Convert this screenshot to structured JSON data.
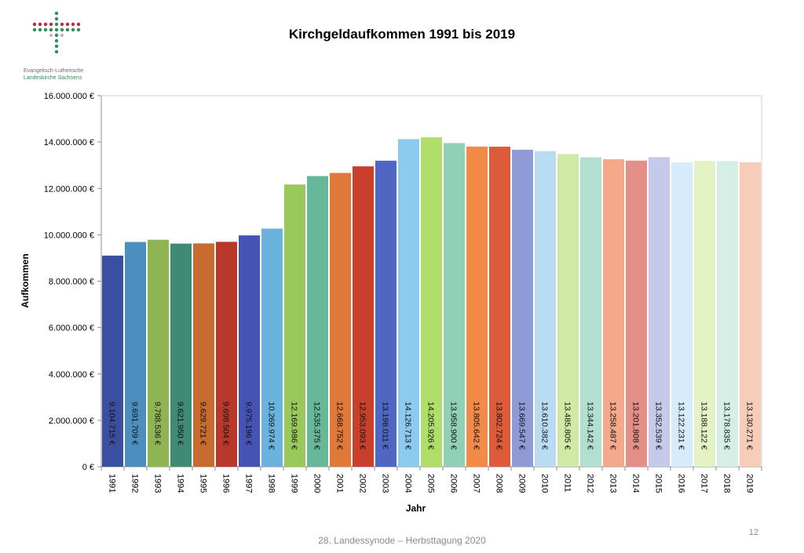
{
  "logo": {
    "line1": "Evangelisch-Lutherische",
    "line2": "Landeskirche Sachsens"
  },
  "title": "Kirchgeldaufkommen 1991 bis 2019",
  "footer": "28. Landessynode – Herbsttagung 2020",
  "page_number": "12",
  "chart_data": {
    "type": "bar",
    "title": "Kirchgeldaufkommen 1991 bis 2019",
    "xlabel": "Jahr",
    "ylabel": "Aufkommen",
    "ylim": [
      0,
      16000000
    ],
    "grid": false,
    "y_ticks": [
      0,
      2000000,
      4000000,
      6000000,
      8000000,
      10000000,
      12000000,
      14000000,
      16000000
    ],
    "y_tick_labels": [
      "0 €",
      "2.000.000 €",
      "4.000.000 €",
      "6.000.000 €",
      "8.000.000 €",
      "10.000.000 €",
      "12.000.000 €",
      "14.000.000 €",
      "16.000.000 €"
    ],
    "categories": [
      "1991",
      "1992",
      "1993",
      "1994",
      "1995",
      "1996",
      "1997",
      "1998",
      "1999",
      "2000",
      "2001",
      "2002",
      "2003",
      "2004",
      "2005",
      "2006",
      "2007",
      "2008",
      "2009",
      "2010",
      "2011",
      "2012",
      "2013",
      "2014",
      "2015",
      "2016",
      "2017",
      "2018",
      "2019"
    ],
    "values": [
      9104715,
      9691709,
      9788536,
      9621950,
      9629721,
      9698504,
      9975196,
      10269974,
      12169986,
      12535375,
      12668752,
      12953093,
      13198011,
      14126713,
      14205926,
      13958900,
      13805642,
      13802724,
      13669547,
      13610382,
      13485805,
      13344142,
      13258487,
      13201808,
      13352539,
      13122231,
      13188122,
      13178835,
      13130271
    ],
    "value_labels": [
      "9.104.715 €",
      "9.691.709 €",
      "9.788.536 €",
      "9.621.950 €",
      "9.629.721 €",
      "9.698.504 €",
      "9.975.196 €",
      "10.269.974 €",
      "12.169.986 €",
      "12.535.375 €",
      "12.668.752 €",
      "12.953.093 €",
      "13.198.011 €",
      "14.126.713 €",
      "14.205.926 €",
      "13.958.900 €",
      "13.805.642 €",
      "13.802.724 €",
      "13.669.547 €",
      "13.610.382 €",
      "13.485.805 €",
      "13.344.142 €",
      "13.258.487 €",
      "13.201.808 €",
      "13.352.539 €",
      "13.122.231 €",
      "13.188.122 €",
      "13.178.835 €",
      "13.130.271 €"
    ],
    "colors": [
      "#3b4fa0",
      "#4a8fbf",
      "#8fb453",
      "#3e8a74",
      "#c76b2e",
      "#b8392a",
      "#4553b5",
      "#6ab3de",
      "#98c95a",
      "#67b79a",
      "#e0783a",
      "#c8402c",
      "#4f67c3",
      "#8dcbee",
      "#b0de6a",
      "#8fd0b6",
      "#f28a48",
      "#dd5a3a",
      "#8f9bd6",
      "#b9dcf3",
      "#d0eaa6",
      "#b2e0d0",
      "#f4a98a",
      "#e49088",
      "#c5c9ea",
      "#d7ecfa",
      "#e3f3c6",
      "#d5efe6",
      "#f7cdb9"
    ]
  }
}
